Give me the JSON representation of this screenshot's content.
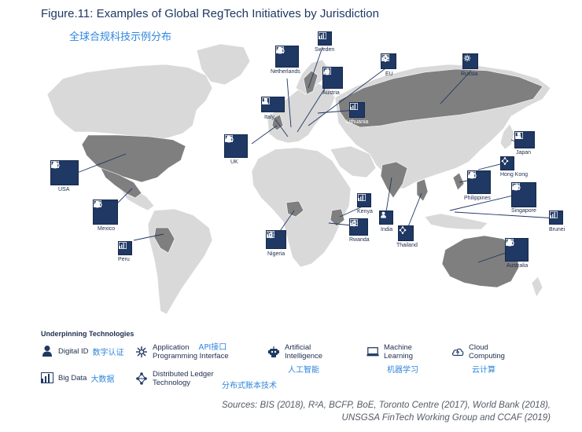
{
  "title": "Figure.11: Examples of Global RegTech Initiatives by Jurisdiction",
  "subtitle": "全球合规科技示例分布",
  "colors": {
    "accent": "#1f3864",
    "highlight_country": "#7f7f7f",
    "land": "#d9d9d9",
    "chinese_text": "#2e86de"
  },
  "jurisdictions": [
    {
      "name": "Sweden",
      "icons": [
        "big-data-icon"
      ]
    },
    {
      "name": "Netherlands",
      "icons": [
        "digital-id-icon",
        "ai-icon",
        "big-data-icon",
        "cloud-icon"
      ]
    },
    {
      "name": "EU",
      "icons": [
        "api-icon",
        "distributed-ledger-icon",
        "big-data-icon"
      ]
    },
    {
      "name": "Russia",
      "icons": [
        "api-icon"
      ]
    },
    {
      "name": "Austria",
      "icons": [
        "ai-icon",
        "big-data-icon"
      ]
    },
    {
      "name": "Italy",
      "icons": [
        "digital-id-icon",
        "big-data-icon"
      ]
    },
    {
      "name": "Lithuania",
      "icons": [
        "big-data-icon"
      ]
    },
    {
      "name": "UK",
      "icons": [
        "digital-id-icon",
        "ai-icon",
        "big-data-icon",
        "cloud-icon"
      ]
    },
    {
      "name": "Japan",
      "icons": [
        "digital-id-icon",
        "big-data-icon"
      ]
    },
    {
      "name": "Hong Kong",
      "icons": [
        "distributed-ledger-icon"
      ]
    },
    {
      "name": "USA",
      "icons": [
        "digital-id-icon",
        "ai-icon",
        "big-data-icon",
        "cloud-icon"
      ]
    },
    {
      "name": "Philippines",
      "icons": [
        "digital-id-icon",
        "ai-icon",
        "big-data-icon",
        "cloud-icon"
      ]
    },
    {
      "name": "Singapore",
      "icons": [
        "api-icon",
        "ai-icon",
        "big-data-icon",
        "cloud-icon"
      ]
    },
    {
      "name": "Mexico",
      "icons": [
        "digital-id-icon",
        "ai-icon",
        "big-data-icon",
        "cloud-icon"
      ]
    },
    {
      "name": "Kenya",
      "icons": [
        "big-data-icon"
      ]
    },
    {
      "name": "India",
      "icons": [
        "digital-id-icon"
      ]
    },
    {
      "name": "Brunei",
      "icons": [
        "big-data-icon"
      ]
    },
    {
      "name": "Peru",
      "icons": [
        "big-data-icon"
      ]
    },
    {
      "name": "Rwanda",
      "icons": [
        "api-icon",
        "big-data-icon"
      ]
    },
    {
      "name": "Thailand",
      "icons": [
        "distributed-ledger-icon"
      ]
    },
    {
      "name": "Nigeria",
      "icons": [
        "api-icon",
        "big-data-icon"
      ]
    },
    {
      "name": "Australia",
      "icons": [
        "ai-icon",
        "digital-id-icon",
        "big-data-icon",
        "cloud-icon"
      ]
    }
  ],
  "legend": {
    "title": "Underpinning Technologies",
    "items": [
      {
        "icon": "digital-id-icon",
        "label": "Digital ID",
        "cn": "数字认证"
      },
      {
        "icon": "api-icon",
        "label": "Application Programming Interface",
        "line1": "Application",
        "line2": "Programming Interface",
        "cn": "API接口"
      },
      {
        "icon": "ai-icon",
        "label": "Artificial Intelligence",
        "line1": "Artificial",
        "line2": "Intelligence",
        "cn": "人工智能"
      },
      {
        "icon": "machine-learning-icon",
        "label": "Machine Learning",
        "line1": "Machine",
        "line2": "Learning",
        "cn": "机器学习"
      },
      {
        "icon": "cloud-icon",
        "label": "Cloud Computing",
        "line1": "Cloud",
        "line2": "Computing",
        "cn": "云计算"
      },
      {
        "icon": "big-data-icon",
        "label": "Big Data",
        "cn": "大数据"
      },
      {
        "icon": "distributed-ledger-icon",
        "label": "Distributed Ledger Technology",
        "line1": "Distributed Ledger",
        "line2": "Technology",
        "cn": "分布式账本技术"
      }
    ]
  },
  "sources": {
    "line1": "Sources: BIS (2018), R²A, BCFP, BoE, Toronto Centre (2017),  World Bank (2018),",
    "line2": "UNSGSA FinTech Working Group and CCAF (2019)"
  }
}
